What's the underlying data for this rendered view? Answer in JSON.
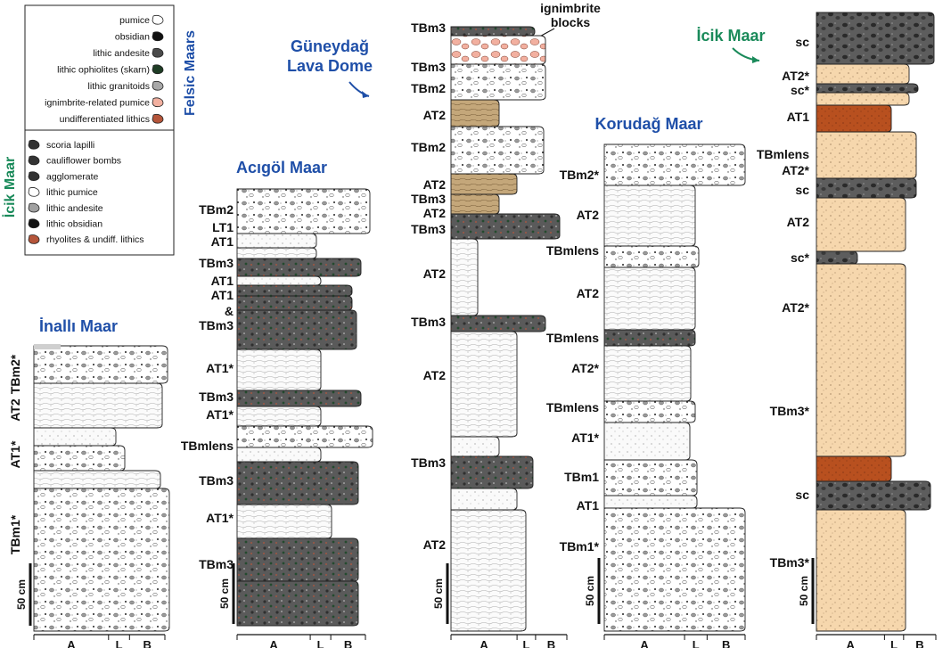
{
  "legend": {
    "felsic_title": "Felsic Maars",
    "felsic_items": [
      {
        "label": "pumice",
        "icon": "pumice-icon",
        "color": "#ffffff"
      },
      {
        "label": "obsidian",
        "icon": "obsidian-icon",
        "color": "#111111"
      },
      {
        "label": "lithic andesite",
        "icon": "lithic-andesite-icon",
        "color": "#4a4a4a"
      },
      {
        "label": "lithic ophiolites (skarn)",
        "icon": "ophiolite-icon",
        "color": "#1f3d25"
      },
      {
        "label": "lithic granitoids",
        "icon": "granitoid-icon",
        "color": "#a8a8a8"
      },
      {
        "label": "ignimbrite-related pumice",
        "icon": "ignimbrite-pumice-icon",
        "color": "#f2b0a0"
      },
      {
        "label": "undifferentiated lithics",
        "icon": "undiff-lithics-icon",
        "color": "#b5553a"
      }
    ],
    "icik_title": "İcik Maar",
    "icik_items": [
      {
        "label": "scoria lapilli",
        "icon": "scoria-icon",
        "color": "#333333"
      },
      {
        "label": "cauliflower bombs",
        "icon": "cauliflower-bomb-icon",
        "color": "#333333"
      },
      {
        "label": "agglomerate",
        "icon": "agglomerate-icon",
        "color": "#333333"
      },
      {
        "label": "lithic pumice",
        "icon": "lithic-pumice-icon",
        "color": "#ffffff"
      },
      {
        "label": "lithic andesite",
        "icon": "lithic-andesite-icon",
        "color": "#a0a0a0"
      },
      {
        "label": "lithic obsidian",
        "icon": "lithic-obsidian-icon",
        "color": "#111111"
      },
      {
        "label": "rhyolites & undiff. lithics",
        "icon": "rhyolite-icon",
        "color": "#b5553a"
      }
    ]
  },
  "sections": {
    "inalli": {
      "title": "İnallı Maar",
      "labels": [
        "TBm2*",
        "AT2",
        "AT1*",
        "TBm1*"
      ],
      "scale": "50 cm",
      "axis": [
        "A",
        "L",
        "B"
      ]
    },
    "acigol": {
      "title": "Acıgöl Maar",
      "labels": [
        "TBm2",
        "LT1",
        "AT1",
        "TBm3",
        "AT1",
        "AT1",
        "&",
        "TBm3",
        "AT1*",
        "TBm3",
        "AT1*",
        "TBmlens",
        "TBm3",
        "AT1*",
        "TBm3"
      ],
      "scale": "50 cm",
      "axis": [
        "A",
        "L",
        "B"
      ]
    },
    "guneydag": {
      "title_line1": "Güneydağ",
      "title_line2": "Lava Dome",
      "annotation": [
        "ignimbrite",
        "blocks"
      ],
      "labels": [
        "TBm3",
        "TBm3",
        "TBm2",
        "AT2",
        "TBm2",
        "AT2",
        "TBm3",
        "AT2",
        "TBm3",
        "AT2",
        "TBm3",
        "AT2",
        "TBm3",
        "AT2"
      ],
      "scale": "50 cm",
      "axis": [
        "A",
        "L",
        "B"
      ]
    },
    "korudag": {
      "title": "Korudağ Maar",
      "labels": [
        "TBm2*",
        "AT2",
        "TBmlens",
        "AT2",
        "TBmlens",
        "AT2*",
        "TBmlens",
        "AT1*",
        "TBm1",
        "AT1",
        "TBm1*"
      ],
      "scale": "50 cm",
      "axis": [
        "A",
        "L",
        "B"
      ]
    },
    "icik": {
      "title": "İcik Maar",
      "labels": [
        "sc",
        "AT2*",
        "sc*",
        "AT1",
        "TBmlens",
        "AT2*",
        "sc",
        "AT2",
        "sc*",
        "AT2*",
        "TBm3*",
        "sc",
        "TBm3*"
      ],
      "scale": "50 cm",
      "axis": [
        "A",
        "L",
        "B"
      ]
    }
  },
  "colors": {
    "title_blue": "#1f4fa8",
    "title_green": "#1a8a5a",
    "dark_bed": "#555555",
    "mid_bed": "#8a8a8a",
    "ash_bed": "#f7f7f7",
    "icik_sand": "#f5d5aa",
    "icik_scoria": "#3a3a3a",
    "icik_red": "#b8501f",
    "ignimbrite_pink": "#f2b0a0",
    "tan_bed": "#b99a6e"
  }
}
